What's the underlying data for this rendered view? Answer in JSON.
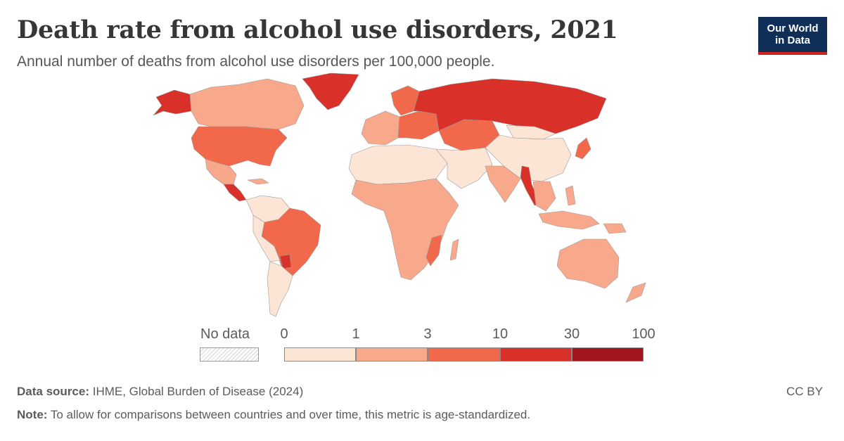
{
  "header": {
    "title": "Death rate from alcohol use disorders, 2021",
    "subtitle": "Annual number of deaths from alcohol use disorders per 100,000 people.",
    "logo_line1": "Our World",
    "logo_line2": "in Data"
  },
  "legend": {
    "no_data_label": "No data",
    "ticks": [
      "0",
      "1",
      "3",
      "10",
      "30",
      "100"
    ],
    "bin_colors": [
      "#fde5d6",
      "#f9a98b",
      "#f2684b",
      "#d9302a",
      "#a3141c"
    ]
  },
  "chart_data": {
    "type": "choropleth",
    "metric": "Death rate from alcohol use disorders per 100,000 people",
    "year": 2021,
    "bins": [
      [
        0,
        1
      ],
      [
        1,
        3
      ],
      [
        3,
        10
      ],
      [
        10,
        30
      ],
      [
        30,
        100
      ]
    ],
    "regions": [
      {
        "name": "Russia",
        "bin": "10-30"
      },
      {
        "name": "Greenland",
        "bin": "10-30"
      },
      {
        "name": "Myanmar",
        "bin": "10-30"
      },
      {
        "name": "Guatemala",
        "bin": "10-30"
      },
      {
        "name": "Alaska",
        "bin": "10-30"
      },
      {
        "name": "United States",
        "bin": "3-10"
      },
      {
        "name": "Brazil",
        "bin": "3-10"
      },
      {
        "name": "Kazakhstan",
        "bin": "3-10"
      },
      {
        "name": "Eastern Europe",
        "bin": "3-10"
      },
      {
        "name": "Canada",
        "bin": "1-3"
      },
      {
        "name": "Mexico",
        "bin": "1-3"
      },
      {
        "name": "Sub-Saharan Africa",
        "bin": "1-3"
      },
      {
        "name": "India",
        "bin": "1-3"
      },
      {
        "name": "Australia",
        "bin": "1-3"
      },
      {
        "name": "Argentina",
        "bin": "0-1"
      },
      {
        "name": "North Africa",
        "bin": "0-1"
      },
      {
        "name": "China",
        "bin": "0-1"
      },
      {
        "name": "Middle East",
        "bin": "0-1"
      }
    ]
  },
  "footer": {
    "source_label": "Data source:",
    "source_text": "IHME, Global Burden of Disease (2024)",
    "note_label": "Note:",
    "note_text": "To allow for comparisons between countries and over time, this metric is age-standardized.",
    "license": "CC BY"
  }
}
